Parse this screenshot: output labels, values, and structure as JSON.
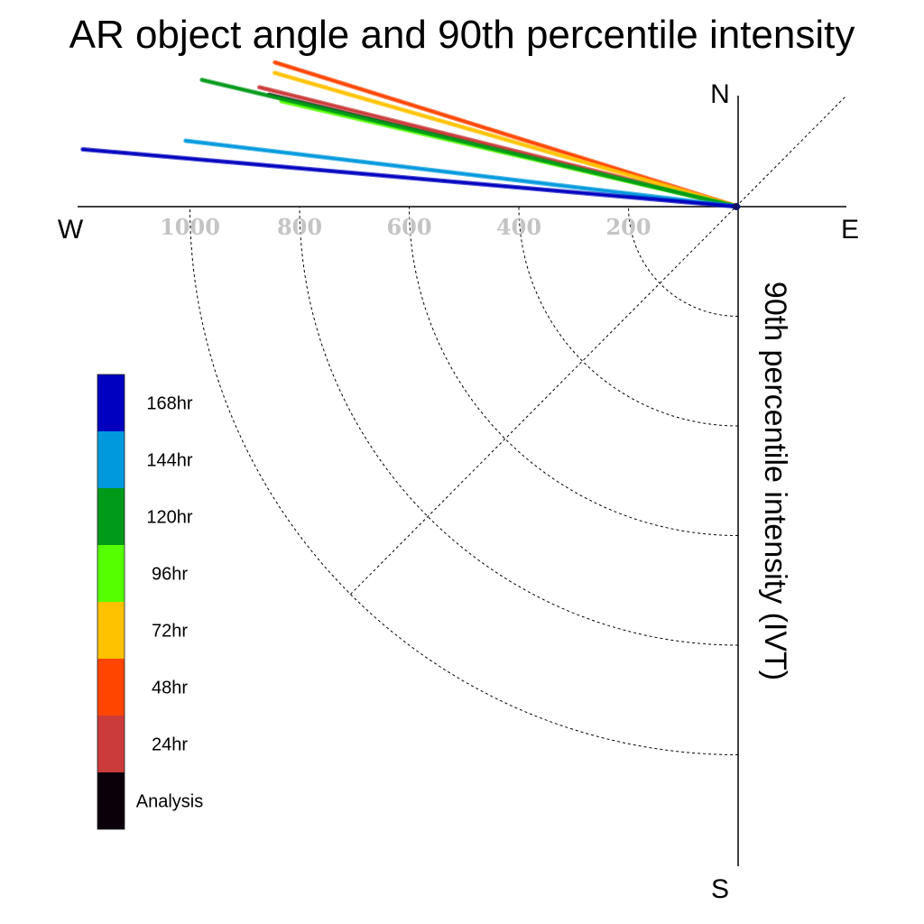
{
  "chart_data": {
    "type": "polar-line",
    "title": "AR object angle and 90th percentile intensity",
    "radial_label": "90th percentile intensity (IVT)",
    "directions": {
      "north": "N",
      "south": "S",
      "east": "E",
      "west": "W"
    },
    "rmax": 1200,
    "radial_ticks": [
      200,
      400,
      600,
      800,
      1000
    ],
    "radial_tick_labels": [
      "200",
      "400",
      "600",
      "800",
      "1000"
    ],
    "grid": true,
    "legend_position": "left",
    "series": [
      {
        "name": "168hr",
        "color": "#0000c0",
        "angle_deg": 185.0,
        "intensity": 1200
      },
      {
        "name": "144hr",
        "color": "#0099dd",
        "angle_deg": 186.8,
        "intensity": 1015
      },
      {
        "name": "120hr",
        "color": "#009a1a",
        "angle_deg": 193.3,
        "intensity": 1005
      },
      {
        "name": "96hr",
        "color": "#55ff00",
        "angle_deg": 193.0,
        "intensity": 855
      },
      {
        "name": "72hr",
        "color": "#ffc200",
        "angle_deg": 196.1,
        "intensity": 880
      },
      {
        "name": "48hr",
        "color": "#ff4500",
        "angle_deg": 197.3,
        "intensity": 885
      },
      {
        "name": "24hr",
        "color": "#cc3b3b",
        "angle_deg": 194.0,
        "intensity": 900
      },
      {
        "name": "Analysis",
        "color": "#0a000a",
        "angle_deg": 193.4,
        "intensity": 880
      }
    ]
  }
}
